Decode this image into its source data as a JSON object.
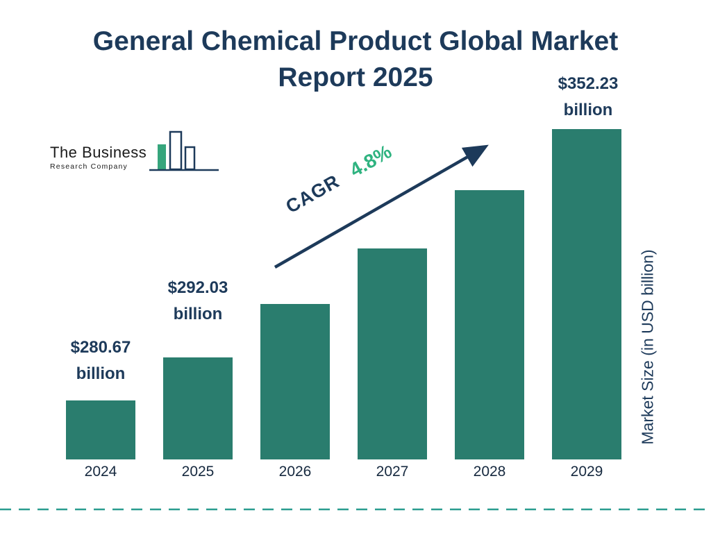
{
  "title": {
    "line1": "General Chemical Product Global Market",
    "line2": "Report 2025"
  },
  "logo": {
    "name_line": "The Business",
    "sub_line": "Research Company"
  },
  "cagr": {
    "label": "CAGR",
    "value": "4.8%"
  },
  "y_axis_label": "Market Size (in USD billion)",
  "colors": {
    "bar": "#2a7d6e",
    "navy": "#1d3a5a",
    "cagr_green": "#2fb380",
    "dashed_line": "#2a9d8f",
    "logo_green": "#36a57c"
  },
  "annotations": {
    "y2024": {
      "amount": "$280.67",
      "unit": "billion"
    },
    "y2025": {
      "amount": "$292.03",
      "unit": "billion"
    },
    "y2029": {
      "amount": "$352.23",
      "unit": "billion"
    }
  },
  "chart_data": {
    "type": "bar",
    "title": "General Chemical Product Global Market Report 2025",
    "categories": [
      "2024",
      "2025",
      "2026",
      "2027",
      "2028",
      "2029"
    ],
    "values": [
      280.67,
      292.03,
      306.05,
      320.74,
      336.14,
      352.23
    ],
    "labeled_points": {
      "2024": "$280.67 billion",
      "2025": "$292.03 billion",
      "2029": "$352.23 billion"
    },
    "cagr_percent": 4.8,
    "xlabel": "",
    "ylabel": "Market Size (in USD billion)",
    "ylim": [
      265,
      353
    ],
    "grid": false,
    "legend": false
  }
}
